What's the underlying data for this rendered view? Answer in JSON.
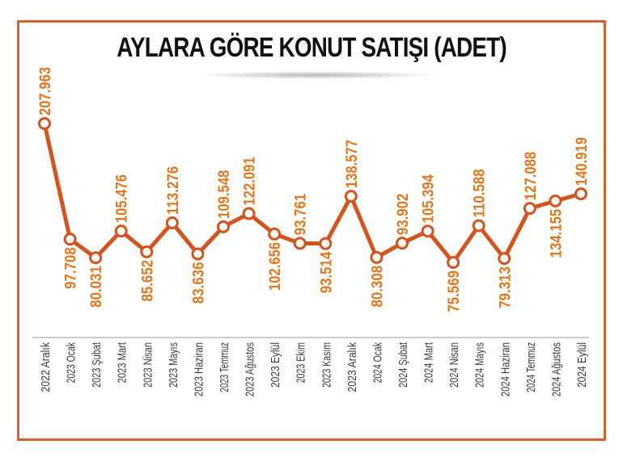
{
  "title": "AYLARA GÖRE KONUT SATIŞI (ADET)",
  "colors": {
    "line": "#d2541e",
    "label": "#e2761f",
    "frame": "#d2622e",
    "axis_text": "#3a3a3a",
    "title": "#111111"
  },
  "chart_data": {
    "type": "line",
    "title": "AYLARA GÖRE KONUT SATIŞI (ADET)",
    "xlabel": "",
    "ylabel": "",
    "grid": false,
    "legend": null,
    "categories": [
      "2022 Aralık",
      "2023 Ocak",
      "2023 Şubat",
      "2023 Mart",
      "2023 Nisan",
      "2023 Mayıs",
      "2023 Haziran",
      "2023 Temmuz",
      "2023 Ağustos",
      "2023 Eylül",
      "2023 Ekim",
      "2023 Kasım",
      "2023 Aralık",
      "2024 Ocak",
      "2024 Şubat",
      "2024 Mart",
      "2024 Nisan",
      "2024 Mayıs",
      "2024 Haziran",
      "2024 Temmuz",
      "2024 Ağustos",
      "2024 Eylül"
    ],
    "values": [
      207963,
      97708,
      80031,
      105476,
      85652,
      113276,
      83636,
      109548,
      122091,
      102656,
      93761,
      93514,
      138577,
      80308,
      93902,
      105394,
      75569,
      110588,
      79313,
      127088,
      134155,
      140919
    ],
    "value_labels": [
      "207.963",
      "97.708",
      "80.031",
      "105.476",
      "85.652",
      "113.276",
      "83.636",
      "109.548",
      "122.091",
      "102.656",
      "93.761",
      "93.514",
      "138.577",
      "80.308",
      "93.902",
      "105.394",
      "75.569",
      "110.588",
      "79.313",
      "127.088",
      "134.155",
      "140.919"
    ],
    "label_positions": [
      "above",
      "below",
      "below",
      "above",
      "below",
      "above",
      "below",
      "above",
      "above",
      "below",
      "above",
      "below",
      "above",
      "below",
      "above",
      "above",
      "below",
      "above",
      "below",
      "above",
      "below",
      "above"
    ]
  }
}
